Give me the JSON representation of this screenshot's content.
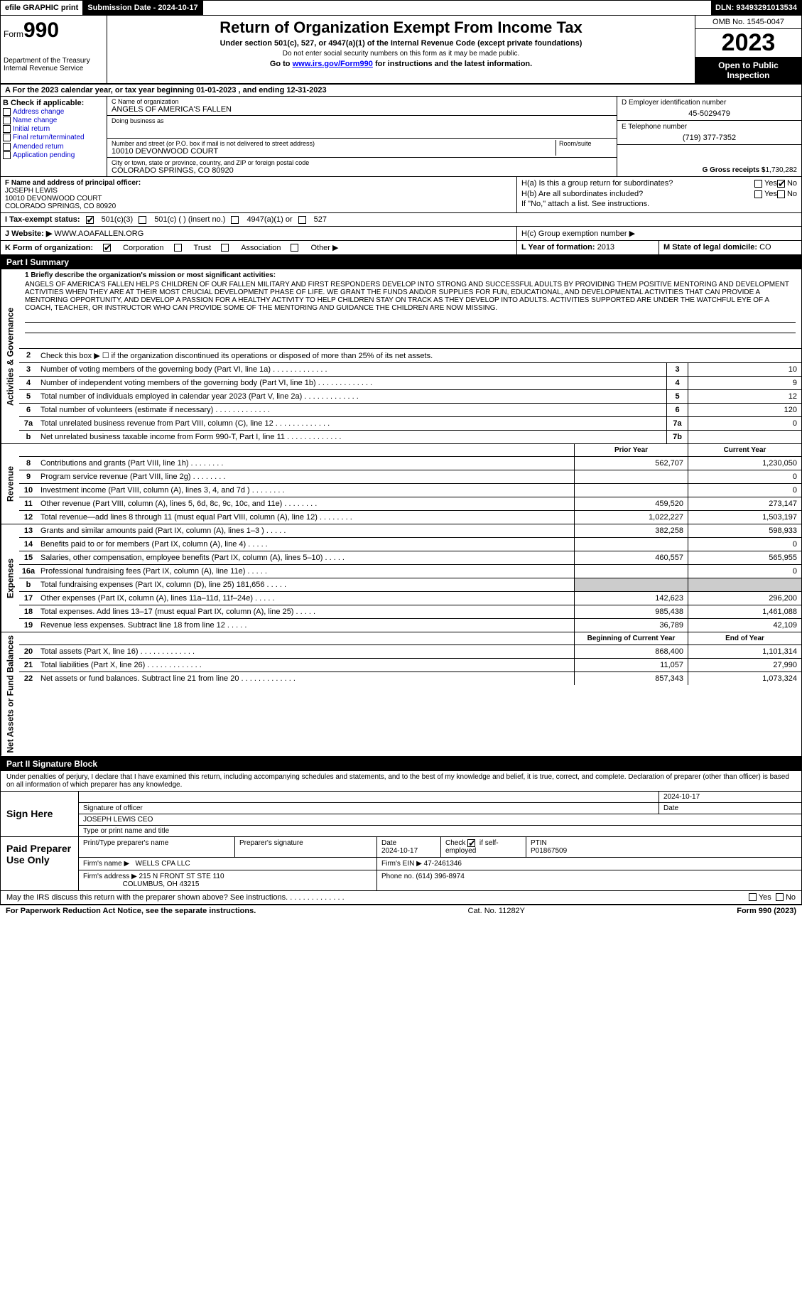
{
  "top": {
    "efile": "efile GRAPHIC print",
    "submission": "Submission Date - 2024-10-17",
    "dln": "DLN: 93493291013534"
  },
  "header": {
    "form_label": "Form",
    "form_num": "990",
    "dept": "Department of the Treasury Internal Revenue Service",
    "title": "Return of Organization Exempt From Income Tax",
    "sub1": "Under section 501(c), 527, or 4947(a)(1) of the Internal Revenue Code (except private foundations)",
    "sub2": "Do not enter social security numbers on this form as it may be made public.",
    "sub3_pre": "Go to ",
    "sub3_link": "www.irs.gov/Form990",
    "sub3_post": " for instructions and the latest information.",
    "omb": "OMB No. 1545-0047",
    "year": "2023",
    "open": "Open to Public Inspection"
  },
  "rowA": "A For the 2023 calendar year, or tax year beginning 01-01-2023   , and ending 12-31-2023",
  "colB": {
    "hdr": "B Check if applicable:",
    "opts": [
      "Address change",
      "Name change",
      "Initial return",
      "Final return/terminated",
      "Amended return",
      "Application pending"
    ]
  },
  "colC": {
    "name_lbl": "C Name of organization",
    "name": "ANGELS OF AMERICA'S FALLEN",
    "dba_lbl": "Doing business as",
    "dba": "",
    "addr_lbl": "Number and street (or P.O. box if mail is not delivered to street address)",
    "room_lbl": "Room/suite",
    "addr": "10010 DEVONWOOD COURT",
    "city_lbl": "City or town, state or province, country, and ZIP or foreign postal code",
    "city": "COLORADO SPRINGS, CO  80920"
  },
  "colD": {
    "ein_lbl": "D Employer identification number",
    "ein": "45-5029479",
    "tel_lbl": "E Telephone number",
    "tel": "(719) 377-7352",
    "gross_lbl": "G Gross receipts $",
    "gross": "1,730,282"
  },
  "rowF": {
    "lbl": "F Name and address of principal officer:",
    "name": "JOSEPH LEWIS",
    "addr1": "10010 DEVONWOOD COURT",
    "addr2": "COLORADO SPRINGS, CO  80920"
  },
  "rowH": {
    "ha": "H(a)  Is this a group return for subordinates?",
    "hb": "H(b)  Are all subordinates included?",
    "hb_note": "If \"No,\" attach a list. See instructions.",
    "hc": "H(c)  Group exemption number ▶",
    "yes": "Yes",
    "no": "No"
  },
  "rowI": {
    "lbl": "I  Tax-exempt status:",
    "o1": "501(c)(3)",
    "o2": "501(c) (  ) (insert no.)",
    "o3": "4947(a)(1) or",
    "o4": "527"
  },
  "rowJ": {
    "lbl": "J  Website: ▶",
    "val": "WWW.AOAFALLEN.ORG"
  },
  "rowK": {
    "lbl": "K Form of organization:",
    "o1": "Corporation",
    "o2": "Trust",
    "o3": "Association",
    "o4": "Other ▶"
  },
  "rowL": {
    "lbl": "L Year of formation:",
    "val": "2013"
  },
  "rowM": {
    "lbl": "M State of legal domicile:",
    "val": "CO"
  },
  "part1": "Part I    Summary",
  "sidebars": {
    "gov": "Activities & Governance",
    "rev": "Revenue",
    "exp": "Expenses",
    "net": "Net Assets or Fund Balances"
  },
  "mission": {
    "lbl": "1  Briefly describe the organization's mission or most significant activities:",
    "txt": "ANGELS OF AMERICA'S FALLEN HELPS CHILDREN OF OUR FALLEN MILITARY AND FIRST RESPONDERS DEVELOP INTO STRONG AND SUCCESSFUL ADULTS BY PROVIDING THEM POSITIVE MENTORING AND DEVELOPMENT ACTIVITIES WHEN THEY ARE AT THEIR MOST CRUCIAL DEVELOPMENT PHASE OF LIFE. WE GRANT THE FUNDS AND/OR SUPPLIES FOR FUN, EDUCATIONAL, AND DEVELOPMENTAL ACTIVITIES THAT CAN PROVIDE A MENTORING OPPORTUNITY, AND DEVELOP A PASSION FOR A HEALTHY ACTIVITY TO HELP CHILDREN STAY ON TRACK AS THEY DEVELOP INTO ADULTS. ACTIVITIES SUPPORTED ARE UNDER THE WATCHFUL EYE OF A COACH, TEACHER, OR INSTRUCTOR WHO CAN PROVIDE SOME OF THE MENTORING AND GUIDANCE THE CHILDREN ARE NOW MISSING."
  },
  "line2": "Check this box ▶ ☐ if the organization discontinued its operations or disposed of more than 25% of its net assets.",
  "gov_lines": [
    {
      "n": "3",
      "d": "Number of voting members of the governing body (Part VI, line 1a)",
      "b": "3",
      "v": "10"
    },
    {
      "n": "4",
      "d": "Number of independent voting members of the governing body (Part VI, line 1b)",
      "b": "4",
      "v": "9"
    },
    {
      "n": "5",
      "d": "Total number of individuals employed in calendar year 2023 (Part V, line 2a)",
      "b": "5",
      "v": "12"
    },
    {
      "n": "6",
      "d": "Total number of volunteers (estimate if necessary)",
      "b": "6",
      "v": "120"
    },
    {
      "n": "7a",
      "d": "Total unrelated business revenue from Part VIII, column (C), line 12",
      "b": "7a",
      "v": "0"
    },
    {
      "n": "b",
      "d": "Net unrelated business taxable income from Form 990-T, Part I, line 11",
      "b": "7b",
      "v": ""
    }
  ],
  "col_hdrs": {
    "prior": "Prior Year",
    "current": "Current Year"
  },
  "rev_lines": [
    {
      "n": "8",
      "d": "Contributions and grants (Part VIII, line 1h)",
      "p": "562,707",
      "c": "1,230,050"
    },
    {
      "n": "9",
      "d": "Program service revenue (Part VIII, line 2g)",
      "p": "",
      "c": "0"
    },
    {
      "n": "10",
      "d": "Investment income (Part VIII, column (A), lines 3, 4, and 7d )",
      "p": "",
      "c": "0"
    },
    {
      "n": "11",
      "d": "Other revenue (Part VIII, column (A), lines 5, 6d, 8c, 9c, 10c, and 11e)",
      "p": "459,520",
      "c": "273,147"
    },
    {
      "n": "12",
      "d": "Total revenue—add lines 8 through 11 (must equal Part VIII, column (A), line 12)",
      "p": "1,022,227",
      "c": "1,503,197"
    }
  ],
  "exp_lines": [
    {
      "n": "13",
      "d": "Grants and similar amounts paid (Part IX, column (A), lines 1–3 )",
      "p": "382,258",
      "c": "598,933"
    },
    {
      "n": "14",
      "d": "Benefits paid to or for members (Part IX, column (A), line 4)",
      "p": "",
      "c": "0"
    },
    {
      "n": "15",
      "d": "Salaries, other compensation, employee benefits (Part IX, column (A), lines 5–10)",
      "p": "460,557",
      "c": "565,955"
    },
    {
      "n": "16a",
      "d": "Professional fundraising fees (Part IX, column (A), line 11e)",
      "p": "",
      "c": "0"
    },
    {
      "n": "b",
      "d": "Total fundraising expenses (Part IX, column (D), line 25) 181,656",
      "p": "shade",
      "c": "shade"
    },
    {
      "n": "17",
      "d": "Other expenses (Part IX, column (A), lines 11a–11d, 11f–24e)",
      "p": "142,623",
      "c": "296,200"
    },
    {
      "n": "18",
      "d": "Total expenses. Add lines 13–17 (must equal Part IX, column (A), line 25)",
      "p": "985,438",
      "c": "1,461,088"
    },
    {
      "n": "19",
      "d": "Revenue less expenses. Subtract line 18 from line 12",
      "p": "36,789",
      "c": "42,109"
    }
  ],
  "net_hdrs": {
    "begin": "Beginning of Current Year",
    "end": "End of Year"
  },
  "net_lines": [
    {
      "n": "20",
      "d": "Total assets (Part X, line 16)",
      "p": "868,400",
      "c": "1,101,314"
    },
    {
      "n": "21",
      "d": "Total liabilities (Part X, line 26)",
      "p": "11,057",
      "c": "27,990"
    },
    {
      "n": "22",
      "d": "Net assets or fund balances. Subtract line 21 from line 20",
      "p": "857,343",
      "c": "1,073,324"
    }
  ],
  "part2": "Part II    Signature Block",
  "sig": {
    "intro": "Under penalties of perjury, I declare that I have examined this return, including accompanying schedules and statements, and to the best of my knowledge and belief, it is true, correct, and complete. Declaration of preparer (other than officer) is based on all information of which preparer has any knowledge.",
    "sign_here": "Sign Here",
    "sig_lbl": "Signature of officer",
    "date_lbl": "Date",
    "date": "2024-10-17",
    "name": "JOSEPH LEWIS CEO",
    "name_lbl": "Type or print name and title"
  },
  "prep": {
    "hdr": "Paid Preparer Use Only",
    "c1": "Print/Type preparer's name",
    "c2": "Preparer's signature",
    "c3": "Date",
    "c4_pre": "Check",
    "c4_post": "if self-employed",
    "c5": "PTIN",
    "date": "2024-10-17",
    "ptin": "P01867509",
    "firm_lbl": "Firm's name  ▶",
    "firm": "WELLS CPA LLC",
    "ein_lbl": "Firm's EIN ▶",
    "ein": "47-2461346",
    "addr_lbl": "Firm's address ▶",
    "addr1": "215 N FRONT ST STE 110",
    "addr2": "COLUMBUS, OH  43215",
    "phone_lbl": "Phone no.",
    "phone": "(614) 396-8974"
  },
  "discuss": {
    "txt": "May the IRS discuss this return with the preparer shown above? See instructions.",
    "yes": "Yes",
    "no": "No"
  },
  "footer": {
    "left": "For Paperwork Reduction Act Notice, see the separate instructions.",
    "mid": "Cat. No. 11282Y",
    "right": "Form 990 (2023)"
  }
}
